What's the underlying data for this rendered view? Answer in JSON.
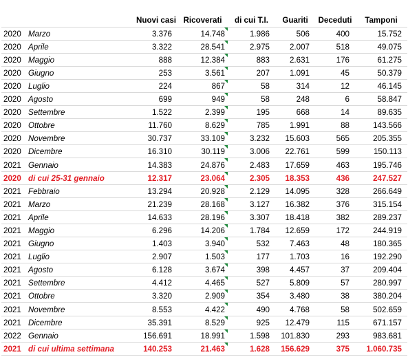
{
  "headers": {
    "nuovi_casi": "Nuovi casi",
    "ricoverati": "Ricoverati",
    "terapia_intensiva": "di cui T.I.",
    "guariti": "Guariti",
    "deceduti": "Deceduti",
    "tamponi": "Tamponi"
  },
  "colors": {
    "highlight_text": "#e31f26",
    "cell_marker": "#1e8a3c"
  },
  "rows": [
    {
      "year": "2020",
      "month": "Marzo",
      "nuovi_casi": "3.376",
      "ricoverati": "14.748",
      "terapia_intensiva": "1.986",
      "guariti": "506",
      "deceduti": "400",
      "tamponi": "15.752",
      "highlight": false
    },
    {
      "year": "2020",
      "month": "Aprile",
      "nuovi_casi": "3.322",
      "ricoverati": "28.541",
      "terapia_intensiva": "2.975",
      "guariti": "2.007",
      "deceduti": "518",
      "tamponi": "49.075",
      "highlight": false
    },
    {
      "year": "2020",
      "month": "Maggio",
      "nuovi_casi": "888",
      "ricoverati": "12.384",
      "terapia_intensiva": "883",
      "guariti": "2.631",
      "deceduti": "176",
      "tamponi": "61.275",
      "highlight": false
    },
    {
      "year": "2020",
      "month": "Giugno",
      "nuovi_casi": "253",
      "ricoverati": "3.561",
      "terapia_intensiva": "207",
      "guariti": "1.091",
      "deceduti": "45",
      "tamponi": "50.379",
      "highlight": false
    },
    {
      "year": "2020",
      "month": "Luglio",
      "nuovi_casi": "224",
      "ricoverati": "867",
      "terapia_intensiva": "58",
      "guariti": "314",
      "deceduti": "12",
      "tamponi": "46.145",
      "highlight": false
    },
    {
      "year": "2020",
      "month": "Agosto",
      "nuovi_casi": "699",
      "ricoverati": "949",
      "terapia_intensiva": "58",
      "guariti": "248",
      "deceduti": "6",
      "tamponi": "58.847",
      "highlight": false
    },
    {
      "year": "2020",
      "month": "Settembre",
      "nuovi_casi": "1.522",
      "ricoverati": "2.399",
      "terapia_intensiva": "195",
      "guariti": "668",
      "deceduti": "14",
      "tamponi": "89.635",
      "highlight": false
    },
    {
      "year": "2020",
      "month": "Ottobre",
      "nuovi_casi": "11.760",
      "ricoverati": "8.629",
      "terapia_intensiva": "785",
      "guariti": "1.991",
      "deceduti": "88",
      "tamponi": "143.566",
      "highlight": false
    },
    {
      "year": "2020",
      "month": "Novembre",
      "nuovi_casi": "30.737",
      "ricoverati": "33.109",
      "terapia_intensiva": "3.232",
      "guariti": "15.603",
      "deceduti": "565",
      "tamponi": "205.355",
      "highlight": false
    },
    {
      "year": "2020",
      "month": "Dicembre",
      "nuovi_casi": "16.310",
      "ricoverati": "30.119",
      "terapia_intensiva": "3.006",
      "guariti": "22.761",
      "deceduti": "599",
      "tamponi": "150.113",
      "highlight": false
    },
    {
      "year": "2021",
      "month": "Gennaio",
      "nuovi_casi": "14.383",
      "ricoverati": "24.876",
      "terapia_intensiva": "2.483",
      "guariti": "17.659",
      "deceduti": "463",
      "tamponi": "195.746",
      "highlight": false
    },
    {
      "year": "2020",
      "month": "di cui 25-31 gennaio",
      "nuovi_casi": "12.317",
      "ricoverati": "23.064",
      "terapia_intensiva": "2.305",
      "guariti": "18.353",
      "deceduti": "436",
      "tamponi": "247.527",
      "highlight": true
    },
    {
      "year": "2021",
      "month": "Febbraio",
      "nuovi_casi": "13.294",
      "ricoverati": "20.928",
      "terapia_intensiva": "2.129",
      "guariti": "14.095",
      "deceduti": "328",
      "tamponi": "266.649",
      "highlight": false
    },
    {
      "year": "2021",
      "month": "Marzo",
      "nuovi_casi": "21.239",
      "ricoverati": "28.168",
      "terapia_intensiva": "3.127",
      "guariti": "16.382",
      "deceduti": "376",
      "tamponi": "315.154",
      "highlight": false
    },
    {
      "year": "2021",
      "month": "Aprile",
      "nuovi_casi": "14.633",
      "ricoverati": "28.196",
      "terapia_intensiva": "3.307",
      "guariti": "18.418",
      "deceduti": "382",
      "tamponi": "289.237",
      "highlight": false
    },
    {
      "year": "2021",
      "month": "Maggio",
      "nuovi_casi": "6.296",
      "ricoverati": "14.206",
      "terapia_intensiva": "1.784",
      "guariti": "12.659",
      "deceduti": "172",
      "tamponi": "244.919",
      "highlight": false
    },
    {
      "year": "2021",
      "month": "Giugno",
      "nuovi_casi": "1.403",
      "ricoverati": "3.940",
      "terapia_intensiva": "532",
      "guariti": "7.463",
      "deceduti": "48",
      "tamponi": "180.365",
      "highlight": false
    },
    {
      "year": "2021",
      "month": "Luglio",
      "nuovi_casi": "2.907",
      "ricoverati": "1.503",
      "terapia_intensiva": "177",
      "guariti": "1.703",
      "deceduti": "16",
      "tamponi": "192.290",
      "highlight": false
    },
    {
      "year": "2021",
      "month": "Agosto",
      "nuovi_casi": "6.128",
      "ricoverati": "3.674",
      "terapia_intensiva": "398",
      "guariti": "4.457",
      "deceduti": "37",
      "tamponi": "209.404",
      "highlight": false
    },
    {
      "year": "2021",
      "month": "Settembre",
      "nuovi_casi": "4.412",
      "ricoverati": "4.465",
      "terapia_intensiva": "527",
      "guariti": "5.809",
      "deceduti": "57",
      "tamponi": "280.997",
      "highlight": false
    },
    {
      "year": "2021",
      "month": "Ottobre",
      "nuovi_casi": "3.320",
      "ricoverati": "2.909",
      "terapia_intensiva": "354",
      "guariti": "3.480",
      "deceduti": "38",
      "tamponi": "380.204",
      "highlight": false
    },
    {
      "year": "2021",
      "month": "Novembre",
      "nuovi_casi": "8.553",
      "ricoverati": "4.422",
      "terapia_intensiva": "490",
      "guariti": "4.768",
      "deceduti": "58",
      "tamponi": "502.659",
      "highlight": false
    },
    {
      "year": "2021",
      "month": "Dicembre",
      "nuovi_casi": "35.391",
      "ricoverati": "8.529",
      "terapia_intensiva": "925",
      "guariti": "12.479",
      "deceduti": "115",
      "tamponi": "671.157",
      "highlight": false
    },
    {
      "year": "2022",
      "month": "Gennaio",
      "nuovi_casi": "156.691",
      "ricoverati": "18.991",
      "terapia_intensiva": "1.598",
      "guariti": "101.830",
      "deceduti": "293",
      "tamponi": "983.681",
      "highlight": false
    },
    {
      "year": "2021",
      "month": "di cui ultima settimana",
      "nuovi_casi": "140.253",
      "ricoverati": "21.463",
      "terapia_intensiva": "1.628",
      "guariti": "156.629",
      "deceduti": "375",
      "tamponi": "1.060.735",
      "highlight": true
    }
  ]
}
